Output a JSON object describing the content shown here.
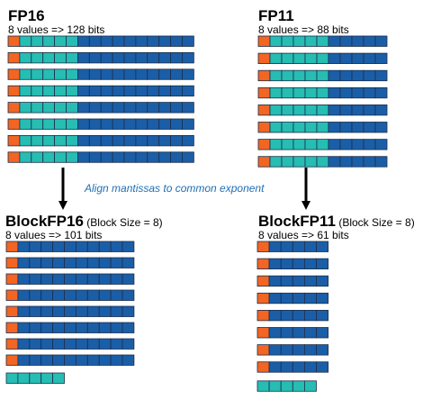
{
  "colors": {
    "sign": "#f26522",
    "exponent": "#26bdb3",
    "mantissa": "#1a5ea8",
    "cell_border": "#1d2f4a"
  },
  "panels": {
    "fp16": {
      "title": "FP16",
      "subtitle": "8 values => 128 bits",
      "rows": 8,
      "sign_bits": 1,
      "exponent_bits": 5,
      "mantissa_bits": 10
    },
    "fp11": {
      "title": "FP11",
      "subtitle": "8 values => 88 bits",
      "rows": 8,
      "sign_bits": 1,
      "exponent_bits": 5,
      "mantissa_bits": 5
    },
    "blockfp16": {
      "title": "BlockFP16",
      "title_note": " (Block Size = 8)",
      "subtitle": "8 values => 101 bits",
      "rows": 8,
      "sign_bits": 1,
      "mantissa_bits": 10,
      "shared_exponent_bits": 5
    },
    "blockfp11": {
      "title": "BlockFP11",
      "title_note": " (Block Size = 8)",
      "subtitle": "8 values => 61 bits",
      "rows": 8,
      "sign_bits": 1,
      "mantissa_bits": 5,
      "shared_exponent_bits": 5
    }
  },
  "caption": "Align mantissas to common exponent"
}
